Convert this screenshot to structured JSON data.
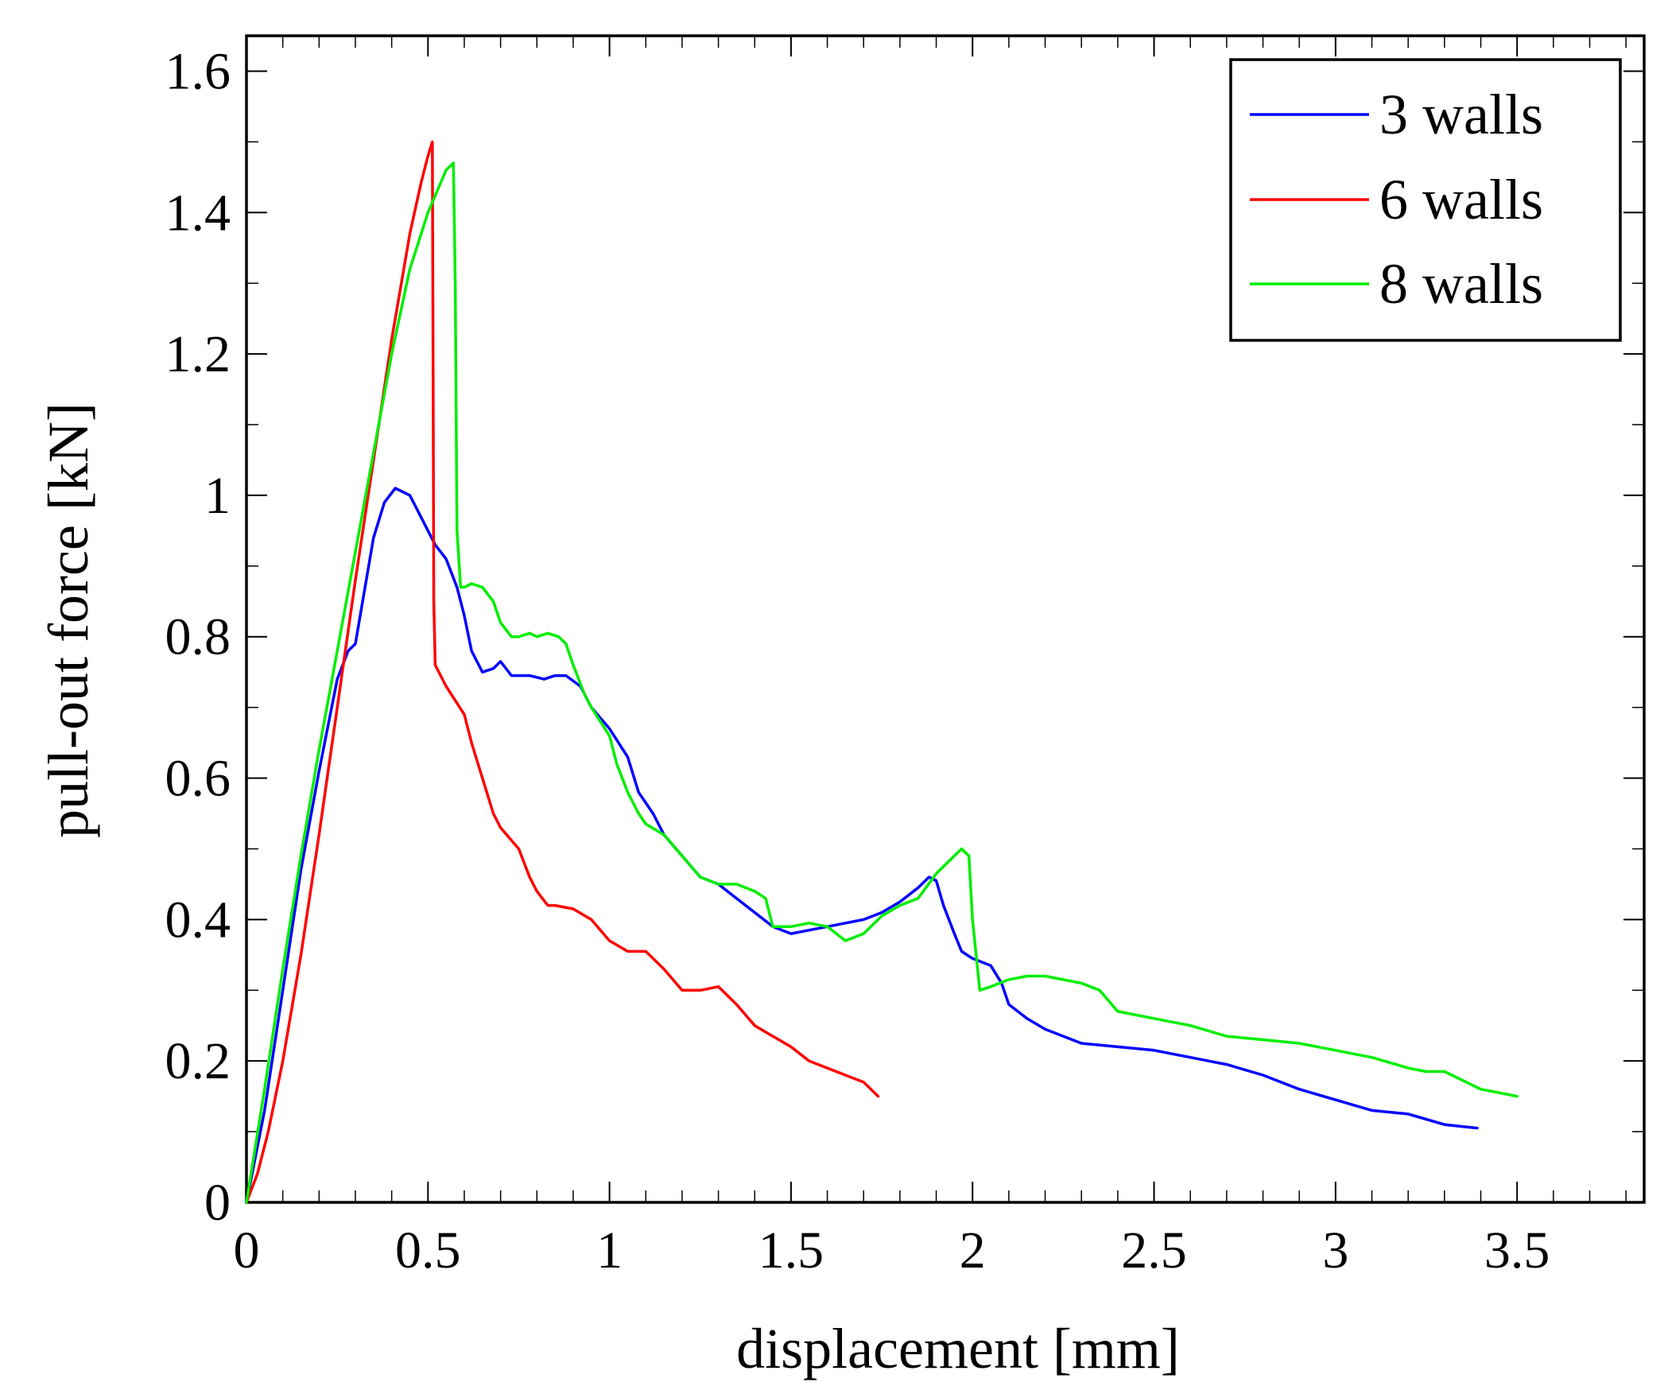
{
  "chart_data": {
    "type": "line",
    "title": "",
    "xlabel": "displacement [mm]",
    "ylabel": "pull-out force [kN]",
    "xlim": [
      0,
      3.85
    ],
    "ylim": [
      0,
      1.65
    ],
    "xticks": [
      0,
      0.5,
      1,
      1.5,
      2,
      2.5,
      3,
      3.5
    ],
    "xtick_labels": [
      "0",
      "0.5",
      "1",
      "1.5",
      "2",
      "2.5",
      "3",
      "3.5"
    ],
    "yticks": [
      0,
      0.2,
      0.4,
      0.6,
      0.8,
      1,
      1.2,
      1.4,
      1.6
    ],
    "ytick_labels": [
      "0",
      "0.2",
      "0.4",
      "0.6",
      "0.8",
      "1",
      "1.2",
      "1.4",
      "1.6"
    ],
    "grid": false,
    "legend_position": "top-right",
    "series": [
      {
        "name": "3 walls",
        "color": "#0000ff",
        "x": [
          0,
          0.05,
          0.1,
          0.15,
          0.2,
          0.25,
          0.28,
          0.3,
          0.32,
          0.35,
          0.38,
          0.41,
          0.45,
          0.48,
          0.5,
          0.52,
          0.55,
          0.58,
          0.6,
          0.62,
          0.65,
          0.68,
          0.7,
          0.73,
          0.75,
          0.78,
          0.82,
          0.85,
          0.88,
          0.92,
          0.95,
          1.0,
          1.05,
          1.08,
          1.12,
          1.15,
          1.2,
          1.25,
          1.3,
          1.35,
          1.4,
          1.45,
          1.5,
          1.55,
          1.6,
          1.65,
          1.7,
          1.75,
          1.8,
          1.85,
          1.88,
          1.9,
          1.92,
          1.95,
          1.97,
          2.0,
          2.05,
          2.08,
          2.1,
          2.15,
          2.2,
          2.25,
          2.3,
          2.4,
          2.5,
          2.6,
          2.7,
          2.8,
          2.9,
          3.0,
          3.1,
          3.2,
          3.3,
          3.39
        ],
        "values": [
          0,
          0.13,
          0.3,
          0.47,
          0.61,
          0.74,
          0.78,
          0.79,
          0.85,
          0.94,
          0.99,
          1.01,
          1.0,
          0.97,
          0.95,
          0.93,
          0.91,
          0.87,
          0.83,
          0.78,
          0.75,
          0.755,
          0.765,
          0.745,
          0.745,
          0.745,
          0.74,
          0.745,
          0.745,
          0.73,
          0.7,
          0.67,
          0.63,
          0.58,
          0.55,
          0.52,
          0.49,
          0.46,
          0.45,
          0.43,
          0.41,
          0.39,
          0.38,
          0.385,
          0.39,
          0.395,
          0.4,
          0.41,
          0.425,
          0.445,
          0.46,
          0.455,
          0.42,
          0.38,
          0.355,
          0.345,
          0.335,
          0.31,
          0.28,
          0.26,
          0.245,
          0.235,
          0.225,
          0.22,
          0.215,
          0.205,
          0.195,
          0.18,
          0.16,
          0.145,
          0.13,
          0.125,
          0.11,
          0.105
        ]
      },
      {
        "name": "6 walls",
        "color": "#ff0000",
        "x": [
          0,
          0.03,
          0.06,
          0.1,
          0.15,
          0.2,
          0.25,
          0.3,
          0.35,
          0.4,
          0.45,
          0.48,
          0.5,
          0.512,
          0.514,
          0.516,
          0.52,
          0.55,
          0.6,
          0.62,
          0.65,
          0.68,
          0.7,
          0.75,
          0.78,
          0.8,
          0.83,
          0.85,
          0.9,
          0.95,
          1.0,
          1.05,
          1.1,
          1.15,
          1.2,
          1.25,
          1.3,
          1.35,
          1.4,
          1.45,
          1.5,
          1.55,
          1.6,
          1.65,
          1.7,
          1.74
        ],
        "values": [
          0,
          0.04,
          0.1,
          0.2,
          0.35,
          0.52,
          0.7,
          0.88,
          1.05,
          1.22,
          1.37,
          1.44,
          1.48,
          1.5,
          1.2,
          0.85,
          0.76,
          0.73,
          0.69,
          0.65,
          0.6,
          0.55,
          0.53,
          0.5,
          0.46,
          0.44,
          0.42,
          0.42,
          0.415,
          0.4,
          0.37,
          0.355,
          0.355,
          0.33,
          0.3,
          0.3,
          0.305,
          0.28,
          0.25,
          0.235,
          0.22,
          0.2,
          0.19,
          0.18,
          0.17,
          0.15
        ]
      },
      {
        "name": "8 walls",
        "color": "#00ee00",
        "x": [
          0,
          0.05,
          0.1,
          0.15,
          0.2,
          0.25,
          0.3,
          0.35,
          0.4,
          0.45,
          0.5,
          0.55,
          0.57,
          0.575,
          0.58,
          0.59,
          0.6,
          0.62,
          0.65,
          0.68,
          0.7,
          0.73,
          0.75,
          0.78,
          0.8,
          0.83,
          0.86,
          0.88,
          0.9,
          0.93,
          0.95,
          1.0,
          1.02,
          1.05,
          1.08,
          1.1,
          1.15,
          1.2,
          1.25,
          1.3,
          1.35,
          1.4,
          1.43,
          1.45,
          1.5,
          1.55,
          1.6,
          1.65,
          1.7,
          1.75,
          1.8,
          1.85,
          1.9,
          1.95,
          1.97,
          1.99,
          2.0,
          2.02,
          2.05,
          2.1,
          2.15,
          2.2,
          2.25,
          2.3,
          2.35,
          2.4,
          2.5,
          2.6,
          2.7,
          2.8,
          2.9,
          3.0,
          3.05,
          3.1,
          3.2,
          3.25,
          3.3,
          3.4,
          3.5
        ],
        "values": [
          0,
          0.16,
          0.33,
          0.49,
          0.64,
          0.78,
          0.92,
          1.06,
          1.2,
          1.32,
          1.4,
          1.46,
          1.47,
          1.3,
          0.95,
          0.87,
          0.87,
          0.875,
          0.87,
          0.85,
          0.82,
          0.8,
          0.8,
          0.805,
          0.8,
          0.805,
          0.8,
          0.79,
          0.76,
          0.72,
          0.7,
          0.66,
          0.62,
          0.58,
          0.55,
          0.535,
          0.52,
          0.49,
          0.46,
          0.45,
          0.45,
          0.44,
          0.43,
          0.39,
          0.39,
          0.395,
          0.39,
          0.37,
          0.38,
          0.405,
          0.42,
          0.43,
          0.465,
          0.49,
          0.5,
          0.49,
          0.4,
          0.3,
          0.305,
          0.315,
          0.32,
          0.32,
          0.315,
          0.31,
          0.3,
          0.27,
          0.26,
          0.25,
          0.235,
          0.23,
          0.225,
          0.215,
          0.21,
          0.205,
          0.19,
          0.185,
          0.185,
          0.16,
          0.15
        ]
      }
    ]
  }
}
